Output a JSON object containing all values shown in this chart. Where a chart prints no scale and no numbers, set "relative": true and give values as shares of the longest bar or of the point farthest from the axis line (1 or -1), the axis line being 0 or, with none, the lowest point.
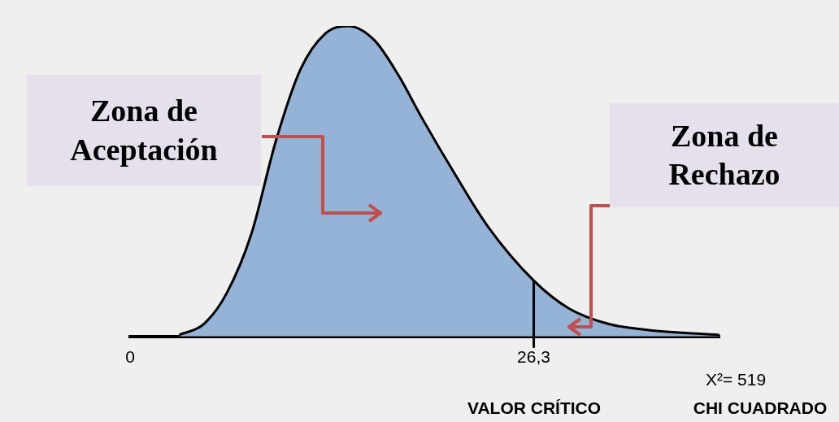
{
  "chart_data": {
    "type": "area",
    "relative": true,
    "x": [
      3.2,
      4.8,
      6.3,
      7.9,
      9.5,
      11.1,
      12.7,
      14.2,
      15.9,
      17.5,
      19.0,
      21.2,
      23.3,
      26.3,
      28.6,
      31.2,
      33.9,
      38.4
    ],
    "series": [
      {
        "color": "#95b3d7",
        "values": [
          0.005,
          0.04,
          0.14,
          0.33,
          0.63,
          0.86,
          0.975,
          1,
          0.955,
          0.84,
          0.705,
          0.52,
          0.355,
          0.18,
          0.09,
          0.04,
          0.02,
          0.005
        ]
      }
    ],
    "xlim": [
      0,
      38.4
    ],
    "xticks": [
      0,
      {
        "value": 26.3,
        "label": "26,3"
      }
    ],
    "ref_lines": [
      {
        "axis": "x",
        "value": 26.3,
        "color": "#000000"
      }
    ],
    "grid": false,
    "legend": false,
    "annotations": [
      "Zona de Aceptación",
      "Zona de Rechazo",
      "X²= 519",
      "VALOR CRÍTICO",
      "CHI CUADRADO"
    ]
  }
}
